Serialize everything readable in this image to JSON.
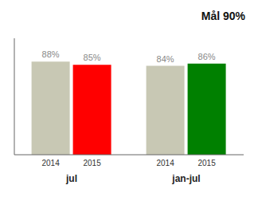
{
  "chart_data": {
    "type": "bar",
    "annotation": "Mål 90%",
    "categories": [
      "jul",
      "jan-jul"
    ],
    "series": [
      {
        "name": "2014",
        "color": "#c8c8b4",
        "values": [
          88,
          84
        ],
        "value_labels": [
          "88%",
          "84%"
        ]
      },
      {
        "name": "2015",
        "colors": [
          "#ff0000",
          "#008000"
        ],
        "values": [
          85,
          86
        ],
        "value_labels": [
          "85%",
          "86%"
        ]
      }
    ],
    "ylim": [
      0,
      110
    ],
    "data_labels": true,
    "tick_labels": "x",
    "grid": false
  }
}
